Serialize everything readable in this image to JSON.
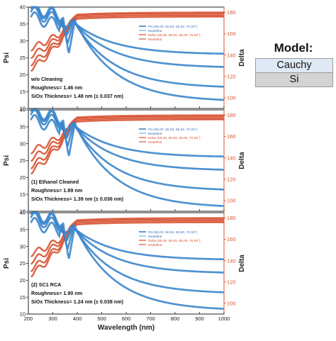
{
  "model": {
    "title": "Model:",
    "layers": [
      "Cauchy",
      "Si"
    ]
  },
  "chart_data": [
    {
      "type": "line",
      "xlabel": "",
      "ylabel": "Psi",
      "y2label": "Delta",
      "xlim": [
        200,
        1000
      ],
      "ylim": [
        10,
        40
      ],
      "y2lim": [
        90,
        185
      ],
      "xticks": [],
      "yticks": [
        10,
        15,
        20,
        25,
        30,
        35,
        40
      ],
      "y2ticks": [
        100,
        120,
        140,
        160,
        180
      ],
      "legend": {
        "psi": "Psi (55.00, 60.00, 65.00, 70.00°)",
        "psi_model": "Modelled",
        "delta": "Delta (55.00, 60.00, 65.00, 70.00°)",
        "delta_model": "Modelled"
      },
      "annotations": [
        "w/o Cleaning",
        "Roughness= 1.46 nm",
        "SiOx Thickness= 1.48 nm (± 0.037 nm)"
      ],
      "psi_final": [
        26,
        22,
        16,
        12
      ],
      "delta_final": [
        180,
        179,
        177.5,
        176
      ]
    },
    {
      "type": "line",
      "xlabel": "",
      "ylabel": "Psi",
      "y2label": "Delta",
      "xlim": [
        200,
        1000
      ],
      "ylim": [
        10,
        40
      ],
      "y2lim": [
        90,
        185
      ],
      "xticks": [],
      "yticks": [
        10,
        15,
        20,
        25,
        30,
        35,
        40
      ],
      "y2ticks": [
        100,
        120,
        140,
        160,
        180
      ],
      "legend": {
        "psi": "Psi (55.00, 60.00, 65.00, 70.00°)",
        "psi_model": "Modelled",
        "delta": "Delta (55.00, 60.00, 65.00, 70.00°)",
        "delta_model": "Modelled"
      },
      "annotations": [
        "(1) Ethanol Cleaned",
        "Roughness= 1.89 nm",
        "SiOx Thickness= 1.39 nm (± 0.036 nm)"
      ],
      "psi_final": [
        26,
        22,
        16,
        11
      ],
      "delta_final": [
        180,
        179,
        177.5,
        176
      ]
    },
    {
      "type": "line",
      "xlabel": "Wavelength (nm)",
      "ylabel": "Psi",
      "y2label": "Delta",
      "xlim": [
        200,
        1000
      ],
      "ylim": [
        10,
        40
      ],
      "y2lim": [
        90,
        185
      ],
      "xticks": [
        200,
        300,
        400,
        500,
        600,
        700,
        800,
        900,
        1000
      ],
      "yticks": [
        10,
        15,
        20,
        25,
        30,
        35,
        40
      ],
      "y2ticks": [
        100,
        120,
        140,
        160,
        180
      ],
      "legend": {
        "psi": "Psi (55.00, 60.00, 65.00, 70.00°)",
        "psi_model": "Modelled",
        "delta": "Delta (55.00, 60.00, 65.00, 70.00°)",
        "delta_model": "Modelled"
      },
      "annotations": [
        "(2) SC1 RCA",
        "Roughness= 1.90 nm",
        "SiOx Thickness= 1.24 nm (± 0.038 nm)"
      ],
      "psi_final": [
        26,
        22,
        16,
        11
      ],
      "delta_final": [
        180,
        179,
        177.5,
        176
      ]
    }
  ]
}
